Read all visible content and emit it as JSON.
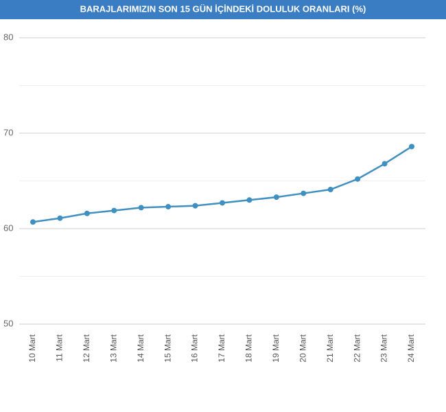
{
  "chart_data": {
    "type": "line",
    "title": "BARAJLARIMIZIN SON 15 GÜN İÇİNDEKİ DOLULUK ORANLARI (%)",
    "categories": [
      "10 Mart",
      "11 Mart",
      "12 Mart",
      "13 Mart",
      "14 Mart",
      "15 Mart",
      "16 Mart",
      "17 Mart",
      "18 Mart",
      "19 Mart",
      "20 Mart",
      "21 Mart",
      "22 Mart",
      "23 Mart",
      "24 Mart"
    ],
    "values": [
      60.7,
      61.1,
      61.6,
      61.9,
      62.2,
      62.3,
      62.4,
      62.7,
      63.0,
      63.3,
      63.7,
      64.1,
      65.2,
      66.8,
      68.6
    ],
    "color": "#3f8fc0",
    "ylim": [
      50,
      80
    ],
    "yticks": [
      50,
      60,
      70,
      80
    ],
    "minor_yticks": [
      55,
      65,
      75
    ],
    "grid": true
  }
}
